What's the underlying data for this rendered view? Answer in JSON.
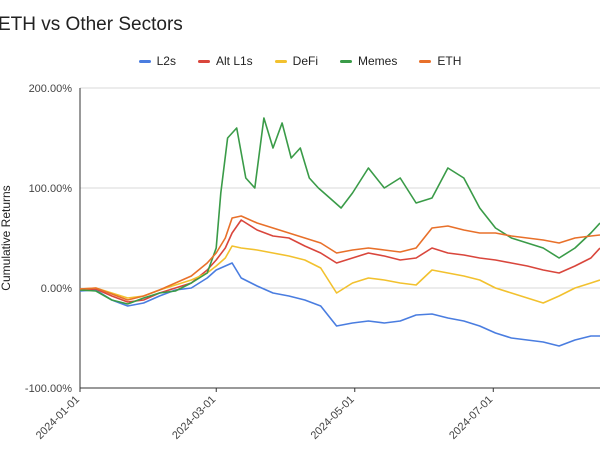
{
  "chart_data": {
    "type": "line",
    "title": "ETH vs Other Sectors",
    "xlabel": "",
    "ylabel": "Cumulative Returns",
    "y_tick_labels": [
      "-100.00%",
      "0.00%",
      "100.00%",
      "200.00%"
    ],
    "y_ticks": [
      -100,
      0,
      100,
      200
    ],
    "ylim": [
      -100,
      200
    ],
    "x_tick_labels": [
      "2024-01-01",
      "2024-03-01",
      "2024-05-01",
      "2024-07-01"
    ],
    "x_ticks": [
      "2024-01-01",
      "2024-03-01",
      "2024-05-01",
      "2024-07-01"
    ],
    "xlim": [
      "2024-01-01",
      "2024-08-17"
    ],
    "grid": "horizontal",
    "legend_position": "top",
    "series": [
      {
        "name": "L2s",
        "color": "#4a7de0",
        "x": [
          "2024-01-01",
          "2024-01-08",
          "2024-01-15",
          "2024-01-22",
          "2024-01-29",
          "2024-02-05",
          "2024-02-12",
          "2024-02-19",
          "2024-02-26",
          "2024-03-01",
          "2024-03-05",
          "2024-03-08",
          "2024-03-12",
          "2024-03-19",
          "2024-03-26",
          "2024-04-02",
          "2024-04-09",
          "2024-04-16",
          "2024-04-23",
          "2024-04-30",
          "2024-05-07",
          "2024-05-14",
          "2024-05-21",
          "2024-05-28",
          "2024-06-04",
          "2024-06-11",
          "2024-06-18",
          "2024-06-25",
          "2024-07-02",
          "2024-07-09",
          "2024-07-16",
          "2024-07-23",
          "2024-07-30",
          "2024-08-06",
          "2024-08-13",
          "2024-08-17"
        ],
        "values": [
          -3,
          -2,
          -12,
          -18,
          -15,
          -8,
          -2,
          0,
          10,
          18,
          22,
          25,
          10,
          2,
          -5,
          -8,
          -12,
          -18,
          -38,
          -35,
          -33,
          -35,
          -33,
          -27,
          -26,
          -30,
          -33,
          -38,
          -45,
          -50,
          -52,
          -54,
          -58,
          -52,
          -48,
          -48
        ]
      },
      {
        "name": "Alt L1s",
        "color": "#d9463c",
        "x": [
          "2024-01-01",
          "2024-01-08",
          "2024-01-15",
          "2024-01-22",
          "2024-01-29",
          "2024-02-05",
          "2024-02-12",
          "2024-02-19",
          "2024-02-26",
          "2024-03-01",
          "2024-03-05",
          "2024-03-08",
          "2024-03-12",
          "2024-03-19",
          "2024-03-26",
          "2024-04-02",
          "2024-04-09",
          "2024-04-16",
          "2024-04-23",
          "2024-04-30",
          "2024-05-07",
          "2024-05-14",
          "2024-05-21",
          "2024-05-28",
          "2024-06-04",
          "2024-06-11",
          "2024-06-18",
          "2024-06-25",
          "2024-07-02",
          "2024-07-09",
          "2024-07-16",
          "2024-07-23",
          "2024-07-30",
          "2024-08-06",
          "2024-08-13",
          "2024-08-17"
        ],
        "values": [
          -2,
          -1,
          -8,
          -14,
          -12,
          -5,
          0,
          5,
          18,
          28,
          40,
          55,
          68,
          58,
          52,
          50,
          42,
          35,
          25,
          30,
          35,
          32,
          28,
          30,
          40,
          35,
          33,
          30,
          28,
          25,
          22,
          18,
          15,
          22,
          30,
          40
        ]
      },
      {
        "name": "DeFi",
        "color": "#f2c12e",
        "x": [
          "2024-01-01",
          "2024-01-08",
          "2024-01-15",
          "2024-01-22",
          "2024-01-29",
          "2024-02-05",
          "2024-02-12",
          "2024-02-19",
          "2024-02-26",
          "2024-03-01",
          "2024-03-05",
          "2024-03-08",
          "2024-03-12",
          "2024-03-19",
          "2024-03-26",
          "2024-04-02",
          "2024-04-09",
          "2024-04-16",
          "2024-04-23",
          "2024-04-30",
          "2024-05-07",
          "2024-05-14",
          "2024-05-21",
          "2024-05-28",
          "2024-06-04",
          "2024-06-11",
          "2024-06-18",
          "2024-06-25",
          "2024-07-02",
          "2024-07-09",
          "2024-07-16",
          "2024-07-23",
          "2024-07-30",
          "2024-08-06",
          "2024-08-13",
          "2024-08-17"
        ],
        "values": [
          -1,
          0,
          -5,
          -10,
          -8,
          -2,
          3,
          8,
          15,
          22,
          30,
          42,
          40,
          38,
          35,
          32,
          28,
          20,
          -5,
          5,
          10,
          8,
          5,
          3,
          18,
          15,
          12,
          8,
          0,
          -5,
          -10,
          -15,
          -8,
          0,
          5,
          8
        ]
      },
      {
        "name": "Memes",
        "color": "#3a9b48",
        "x": [
          "2024-01-01",
          "2024-01-08",
          "2024-01-15",
          "2024-01-22",
          "2024-01-29",
          "2024-02-05",
          "2024-02-12",
          "2024-02-19",
          "2024-02-26",
          "2024-03-01",
          "2024-03-03",
          "2024-03-06",
          "2024-03-10",
          "2024-03-14",
          "2024-03-18",
          "2024-03-22",
          "2024-03-26",
          "2024-03-30",
          "2024-04-03",
          "2024-04-07",
          "2024-04-11",
          "2024-04-15",
          "2024-04-20",
          "2024-04-25",
          "2024-04-30",
          "2024-05-07",
          "2024-05-14",
          "2024-05-21",
          "2024-05-28",
          "2024-06-04",
          "2024-06-11",
          "2024-06-18",
          "2024-06-25",
          "2024-07-02",
          "2024-07-09",
          "2024-07-16",
          "2024-07-23",
          "2024-07-30",
          "2024-08-06",
          "2024-08-13",
          "2024-08-17"
        ],
        "values": [
          -2,
          -3,
          -12,
          -16,
          -10,
          -5,
          -3,
          5,
          15,
          40,
          95,
          150,
          160,
          110,
          100,
          170,
          140,
          165,
          130,
          140,
          110,
          100,
          90,
          80,
          95,
          120,
          100,
          110,
          85,
          90,
          120,
          110,
          80,
          60,
          50,
          45,
          40,
          30,
          40,
          55,
          65
        ]
      },
      {
        "name": "ETH",
        "color": "#e8702a",
        "x": [
          "2024-01-01",
          "2024-01-08",
          "2024-01-15",
          "2024-01-22",
          "2024-01-29",
          "2024-02-05",
          "2024-02-12",
          "2024-02-19",
          "2024-02-26",
          "2024-03-01",
          "2024-03-05",
          "2024-03-08",
          "2024-03-12",
          "2024-03-19",
          "2024-03-26",
          "2024-04-02",
          "2024-04-09",
          "2024-04-16",
          "2024-04-23",
          "2024-04-30",
          "2024-05-07",
          "2024-05-14",
          "2024-05-21",
          "2024-05-28",
          "2024-06-04",
          "2024-06-11",
          "2024-06-18",
          "2024-06-25",
          "2024-07-02",
          "2024-07-09",
          "2024-07-16",
          "2024-07-23",
          "2024-07-30",
          "2024-08-06",
          "2024-08-13",
          "2024-08-17"
        ],
        "values": [
          -1,
          0,
          -6,
          -12,
          -8,
          -2,
          5,
          12,
          25,
          35,
          50,
          70,
          72,
          65,
          60,
          55,
          50,
          45,
          35,
          38,
          40,
          38,
          36,
          40,
          60,
          62,
          58,
          55,
          55,
          52,
          50,
          48,
          45,
          50,
          52,
          53
        ]
      }
    ]
  }
}
